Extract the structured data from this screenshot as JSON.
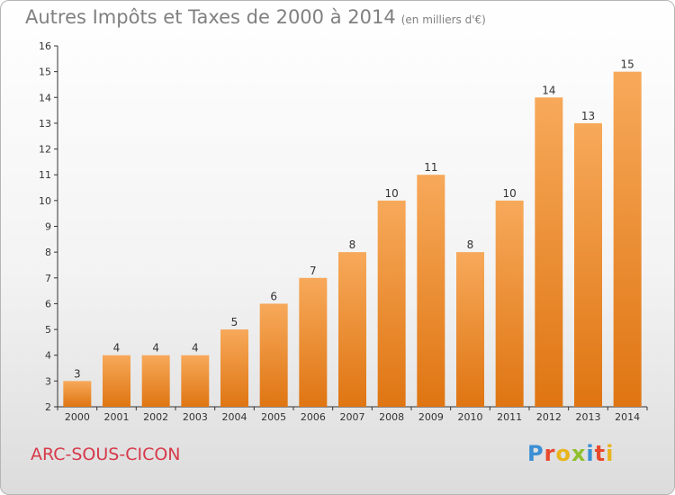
{
  "title": "Autres Impôts et Taxes de 2000 à 2014",
  "title_unit": "(en milliers d'€)",
  "commune": "ARC-SOUS-CICON",
  "logo": {
    "text": "Proxiti",
    "colors": [
      "#3b8fd4",
      "#e8492b",
      "#e9b51d",
      "#8fbf2c",
      "#3b8fd4",
      "#e8492b",
      "#e9b51d"
    ]
  },
  "colors": {
    "bar_light": "#f7a95a",
    "bar_dark": "#df7512",
    "axis": "#333333",
    "grid": "#cccccc",
    "text": "#333333"
  },
  "chart_data": {
    "type": "bar",
    "categories": [
      "2000",
      "2001",
      "2002",
      "2003",
      "2004",
      "2005",
      "2006",
      "2007",
      "2008",
      "2009",
      "2010",
      "2011",
      "2012",
      "2013",
      "2014"
    ],
    "values": [
      3,
      4,
      4,
      4,
      5,
      6,
      7,
      8,
      10,
      11,
      8,
      10,
      14,
      13,
      15
    ],
    "ylim": [
      2,
      16
    ],
    "yticks": [
      2,
      3,
      4,
      5,
      6,
      7,
      8,
      9,
      10,
      11,
      12,
      13,
      14,
      15,
      16
    ],
    "grid": false
  }
}
